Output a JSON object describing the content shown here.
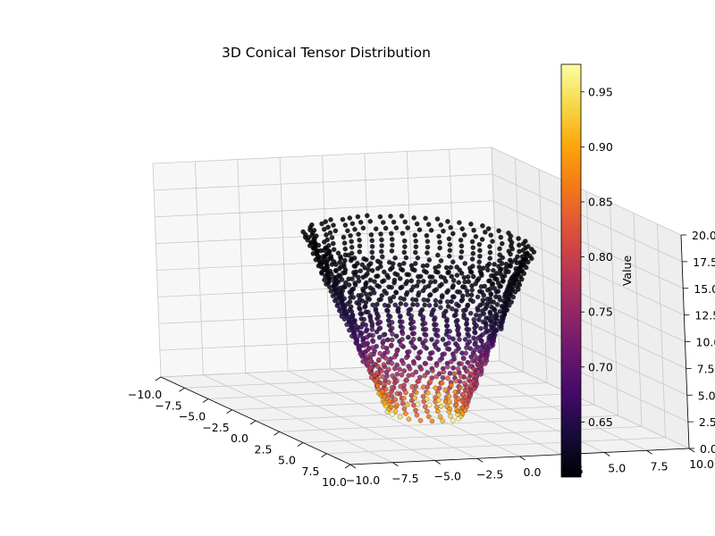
{
  "chart_data": {
    "type": "scatter",
    "projection": "3d",
    "title": "3D Conical Tensor Distribution",
    "xlabel": "",
    "ylabel": "",
    "zlabel": "",
    "xlim": [
      -10,
      10
    ],
    "ylim": [
      -10,
      10
    ],
    "zlim": [
      0,
      20
    ],
    "x_ticks": [
      "−10.0",
      "−7.5",
      "−5.0",
      "−2.5",
      "0.0",
      "2.5",
      "5.0",
      "7.5",
      "10.0"
    ],
    "y_ticks": [
      "−10.0",
      "−7.5",
      "−5.0",
      "−2.5",
      "0.0",
      "2.5",
      "5.0",
      "7.5",
      "10.0"
    ],
    "z_ticks": [
      "0.0",
      "2.5",
      "5.0",
      "7.5",
      "10.0",
      "12.5",
      "15.0",
      "17.5",
      "20.0"
    ],
    "grid": true,
    "colormap": "inferno",
    "shape": {
      "kind": "cone",
      "apex_z": 0,
      "top_z": 16,
      "radius_at_bottom": 2,
      "radius_at_top": 6
    },
    "value_range": [
      0.6,
      0.975
    ],
    "colorbar": {
      "label": "Value",
      "ticks": [
        "0.65",
        "0.70",
        "0.75",
        "0.80",
        "0.85",
        "0.90",
        "0.95"
      ],
      "tick_values": [
        0.65,
        0.7,
        0.75,
        0.8,
        0.85,
        0.9,
        0.95
      ],
      "min": 0.6,
      "max": 0.975
    }
  }
}
